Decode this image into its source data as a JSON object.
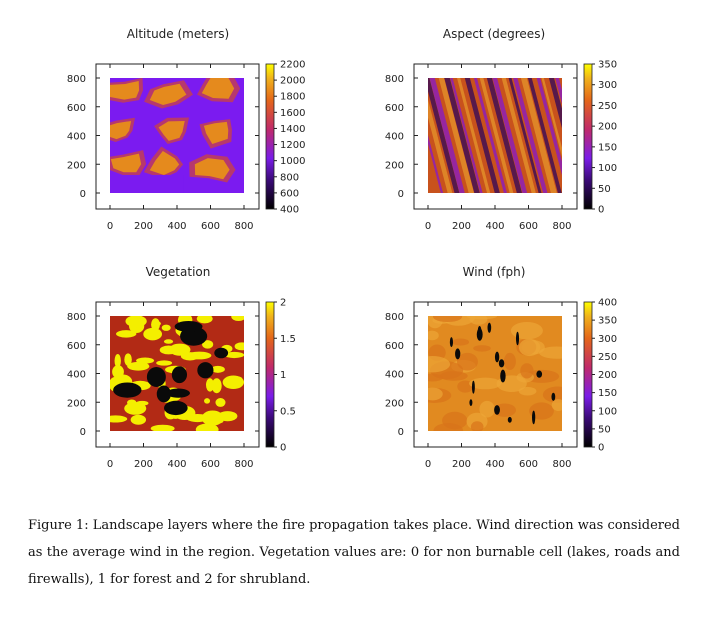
{
  "figure": {
    "panels": [
      {
        "id": "altitude",
        "title": "Altitude (meters)",
        "x_ticks": [
          "0",
          "200",
          "400",
          "600",
          "800"
        ],
        "y_ticks": [
          "0",
          "200",
          "400",
          "600",
          "800"
        ],
        "colorbar_ticks": [
          "400",
          "600",
          "800",
          "1000",
          "1200",
          "1400",
          "1600",
          "1800",
          "2000",
          "2200"
        ],
        "colorbar_range": [
          400,
          2200
        ],
        "pattern": "ridges",
        "colors": {
          "base": "#7b1bf0",
          "mid": "#c23d56",
          "high": "#e58a1d",
          "peak": "#f5b94a"
        }
      },
      {
        "id": "aspect",
        "title": "Aspect (degrees)",
        "x_ticks": [
          "0",
          "200",
          "400",
          "600",
          "800"
        ],
        "y_ticks": [
          "0",
          "200",
          "400",
          "600",
          "800"
        ],
        "colorbar_ticks": [
          "0",
          "50",
          "100",
          "150",
          "200",
          "250",
          "300",
          "350"
        ],
        "colorbar_range": [
          0,
          350
        ],
        "pattern": "stripes",
        "colors": {
          "base": "#c8521c",
          "mid": "#8a1cc2",
          "high": "#e4912a",
          "peak": "#3a0b58"
        }
      },
      {
        "id": "vegetation",
        "title": "Vegetation",
        "x_ticks": [
          "0",
          "200",
          "400",
          "600",
          "800"
        ],
        "y_ticks": [
          "0",
          "200",
          "400",
          "600",
          "800"
        ],
        "colorbar_ticks": [
          "0",
          "0.5",
          "1",
          "1.5",
          "2"
        ],
        "colorbar_range": [
          0,
          2
        ],
        "pattern": "vegetation",
        "colors": {
          "base": "#b22a15",
          "mid": "#f4ef00",
          "high": "#f7f300",
          "peak": "#0a0a0a"
        }
      },
      {
        "id": "wind",
        "title": "Wind (fph)",
        "x_ticks": [
          "0",
          "200",
          "400",
          "600",
          "800"
        ],
        "y_ticks": [
          "0",
          "200",
          "400",
          "600",
          "800"
        ],
        "colorbar_ticks": [
          "0",
          "50",
          "100",
          "150",
          "200",
          "250",
          "300",
          "350",
          "400"
        ],
        "colorbar_range": [
          0,
          400
        ],
        "pattern": "wind",
        "colors": {
          "base": "#e18a20",
          "mid": "#eca536",
          "high": "#d8741a",
          "peak": "#0a0a0a"
        }
      }
    ]
  },
  "caption": "Figure 1: Landscape layers where the fire propagation takes place. Wind direction was considered as the average wind in the region. Vegetation values are: 0 for non burnable cell (lakes, roads and firewalls), 1 for forest and 2 for shrubland."
}
